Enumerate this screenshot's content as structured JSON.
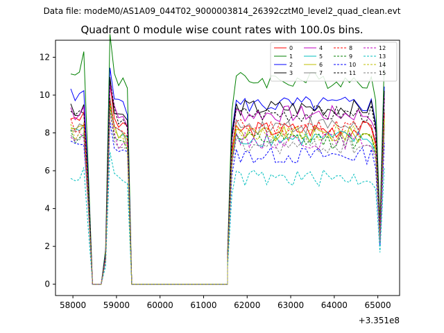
{
  "figure": {
    "suptitle": "Data file: modeM0/AS1A09_044T02_9000003814_26392cztM0_level2_quad_clean.evt",
    "title": "Quadrant 0 module wise count rates with 100.0s bins.",
    "x_offset_label": "+3.351e8"
  },
  "chart_data": {
    "type": "line",
    "title": "Quadrant 0 module wise count rates with 100.0s bins.",
    "xlabel": "",
    "ylabel": "",
    "x_offset": "+3.351e8",
    "xlim": [
      57600,
      65500
    ],
    "ylim": [
      -0.6,
      12.9
    ],
    "xticks": [
      58000,
      59000,
      60000,
      61000,
      62000,
      63000,
      64000,
      65000
    ],
    "xtick_labels": [
      "58000",
      "59000",
      "60000",
      "61000",
      "62000",
      "63000",
      "64000",
      "65000"
    ],
    "yticks": [
      0,
      2,
      4,
      6,
      8,
      10,
      12
    ],
    "ytick_labels": [
      "0",
      "2",
      "4",
      "6",
      "8",
      "10",
      "12"
    ],
    "grid": false,
    "legend_position": "top-right",
    "legend_columns": 4,
    "segments": {
      "seg1_x": [
        57950,
        58050,
        58150,
        58250,
        58350,
        58450,
        58550,
        58650,
        58750,
        58850,
        58950,
        59050,
        59150,
        59250,
        59350,
        59450
      ],
      "zero_x": [
        59450,
        61550
      ],
      "seg2_x": [
        61550,
        61650,
        61750,
        61850,
        61950,
        62050,
        62150,
        62250,
        62350,
        62450,
        62550,
        62650,
        62750,
        62850,
        62950,
        63050,
        63150,
        63250,
        63350,
        63450,
        63550,
        63650,
        63750,
        63850,
        63950,
        64050,
        64150,
        64250,
        64350,
        64450,
        64550,
        64650,
        64750,
        64850,
        64950,
        65050,
        65150
      ]
    },
    "series": [
      {
        "name": "0",
        "color": "#ff0000",
        "dash": "solid",
        "level1": 9.0,
        "level2": 8.2
      },
      {
        "name": "1",
        "color": "#008000",
        "dash": "solid",
        "level1": 11.5,
        "level2": 10.8
      },
      {
        "name": "2",
        "color": "#0000ff",
        "dash": "solid",
        "level1": 10.2,
        "level2": 9.5
      },
      {
        "name": "3",
        "color": "#000000",
        "dash": "solid",
        "level1": 9.5,
        "level2": 9.3
      },
      {
        "name": "4",
        "color": "#bf00bf",
        "dash": "solid",
        "level1": 9.4,
        "level2": 9.0
      },
      {
        "name": "5",
        "color": "#00bfbf",
        "dash": "solid",
        "level1": 8.4,
        "level2": 7.7
      },
      {
        "name": "6",
        "color": "#bfbf00",
        "dash": "solid",
        "level1": 8.5,
        "level2": 7.9
      },
      {
        "name": "7",
        "color": "#808080",
        "dash": "solid",
        "level1": 8.5,
        "level2": 8.4
      },
      {
        "name": "8",
        "color": "#ff0000",
        "dash": "dashed",
        "level1": 8.6,
        "level2": 8.3
      },
      {
        "name": "9",
        "color": "#008000",
        "dash": "dashed",
        "level1": 8.1,
        "level2": 7.6
      },
      {
        "name": "10",
        "color": "#0000ff",
        "dash": "dashed",
        "level1": 7.6,
        "level2": 6.8
      },
      {
        "name": "11",
        "color": "#000000",
        "dash": "dashed",
        "level1": 9.3,
        "level2": 9.0
      },
      {
        "name": "12",
        "color": "#bf00bf",
        "dash": "dashed",
        "level1": 8.0,
        "level2": 7.6
      },
      {
        "name": "13",
        "color": "#00bfbf",
        "dash": "dashed",
        "level1": 5.9,
        "level2": 5.6
      },
      {
        "name": "14",
        "color": "#bfbf00",
        "dash": "dashed",
        "level1": 8.3,
        "level2": 8.0
      },
      {
        "name": "15",
        "color": "#808080",
        "dash": "dashed",
        "level1": 7.8,
        "level2": 7.3
      }
    ]
  }
}
